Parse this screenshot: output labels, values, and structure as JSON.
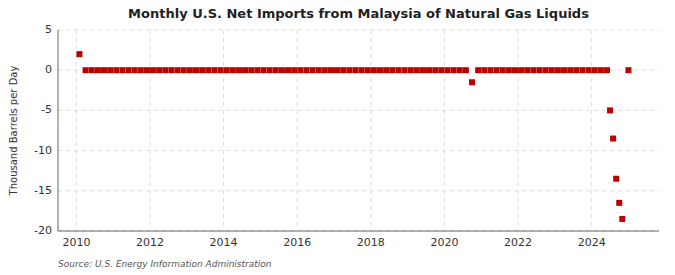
{
  "chart_data": {
    "type": "scatter",
    "title": "Monthly U.S. Net Imports from Malaysia of Natural Gas Liquids",
    "y_label": "Thousand Barrels per Day",
    "annotations": [
      "Source: U.S. Energy Information Administration"
    ],
    "color": "#bb0000",
    "marker": "square",
    "grid": true,
    "xlim": [
      2009.5,
      2025.83
    ],
    "xticks": [
      2010,
      2012,
      2014,
      2016,
      2018,
      2020,
      2022,
      2024
    ],
    "ylim": [
      -20,
      5
    ],
    "yticks": [
      -20,
      -15,
      -10,
      -5,
      0,
      5
    ],
    "x": [
      2010.083,
      2010.25,
      2010.417,
      2010.583,
      2010.75,
      2010.917,
      2011.083,
      2011.25,
      2011.417,
      2011.583,
      2011.75,
      2011.917,
      2012.083,
      2012.25,
      2012.417,
      2012.583,
      2012.75,
      2012.917,
      2013.083,
      2013.25,
      2013.417,
      2013.583,
      2013.75,
      2013.917,
      2014.083,
      2014.25,
      2014.417,
      2014.583,
      2014.75,
      2014.917,
      2015.083,
      2015.25,
      2015.417,
      2015.583,
      2015.75,
      2015.917,
      2016.083,
      2016.25,
      2016.417,
      2016.583,
      2016.75,
      2016.917,
      2017.083,
      2017.25,
      2017.417,
      2017.583,
      2017.75,
      2017.917,
      2018.083,
      2018.25,
      2018.417,
      2018.583,
      2018.75,
      2018.917,
      2019.083,
      2019.25,
      2019.417,
      2019.583,
      2019.75,
      2019.917,
      2020.083,
      2020.25,
      2020.417,
      2020.583,
      2020.75,
      2020.917,
      2021.083,
      2021.25,
      2021.417,
      2021.583,
      2021.75,
      2021.917,
      2022.083,
      2022.25,
      2022.417,
      2022.583,
      2022.75,
      2022.917,
      2023.083,
      2023.25,
      2023.417,
      2023.583,
      2023.75,
      2023.917,
      2024.083,
      2024.25,
      2024.417,
      2024.5,
      2024.583,
      2024.667,
      2024.75,
      2024.833,
      2025.0
    ],
    "values": [
      2.0,
      0.0,
      0.0,
      0.0,
      0.0,
      0.0,
      0.0,
      0.0,
      0.0,
      0.0,
      0.0,
      0.0,
      0.0,
      0.0,
      0.0,
      0.0,
      0.0,
      0.0,
      0.0,
      0.0,
      0.0,
      0.0,
      0.0,
      0.0,
      0.0,
      0.0,
      0.0,
      0.0,
      0.0,
      0.0,
      0.0,
      0.0,
      0.0,
      0.0,
      0.0,
      0.0,
      0.0,
      0.0,
      0.0,
      0.0,
      0.0,
      0.0,
      0.0,
      0.0,
      0.0,
      0.0,
      0.0,
      0.0,
      0.0,
      0.0,
      0.0,
      0.0,
      0.0,
      0.0,
      0.0,
      0.0,
      0.0,
      0.0,
      0.0,
      0.0,
      0.0,
      0.0,
      0.0,
      0.0,
      -1.5,
      0.0,
      0.0,
      0.0,
      0.0,
      0.0,
      0.0,
      0.0,
      0.0,
      0.0,
      0.0,
      0.0,
      0.0,
      0.0,
      0.0,
      0.0,
      0.0,
      0.0,
      0.0,
      0.0,
      0.0,
      0.0,
      0.0,
      -5.0,
      -8.5,
      -13.5,
      -16.5,
      -18.5,
      0.0
    ]
  }
}
